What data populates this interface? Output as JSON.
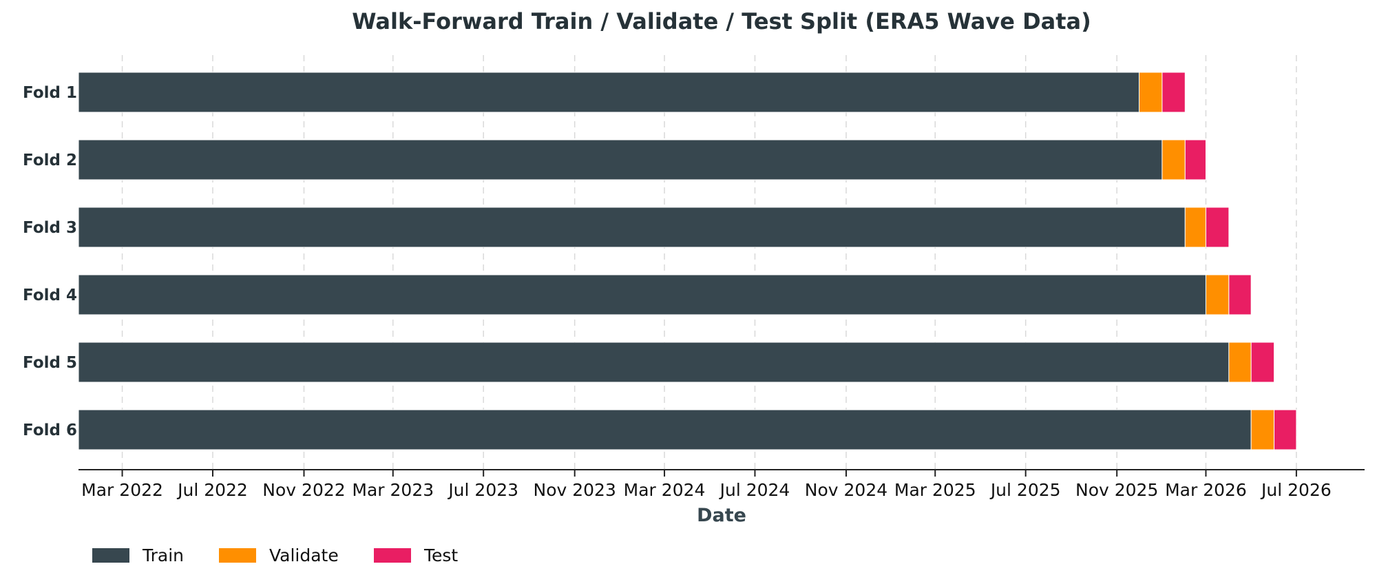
{
  "chart_data": {
    "type": "bar",
    "orientation": "horizontal",
    "stacked": true,
    "title": "Walk-Forward Train / Validate / Test Split (ERA5 Wave Data)",
    "xlabel": "Date",
    "ylabel": "",
    "xlim": [
      "2022-01-01",
      "2026-10-01"
    ],
    "xticks": [
      {
        "date": "2022-03-01",
        "label": "Mar 2022"
      },
      {
        "date": "2022-07-01",
        "label": "Jul 2022"
      },
      {
        "date": "2022-11-01",
        "label": "Nov 2022"
      },
      {
        "date": "2023-03-01",
        "label": "Mar 2023"
      },
      {
        "date": "2023-07-01",
        "label": "Jul 2023"
      },
      {
        "date": "2023-11-01",
        "label": "Nov 2023"
      },
      {
        "date": "2024-03-01",
        "label": "Mar 2024"
      },
      {
        "date": "2024-07-01",
        "label": "Jul 2024"
      },
      {
        "date": "2024-11-01",
        "label": "Nov 2024"
      },
      {
        "date": "2025-03-01",
        "label": "Mar 2025"
      },
      {
        "date": "2025-07-01",
        "label": "Jul 2025"
      },
      {
        "date": "2025-11-01",
        "label": "Nov 2025"
      },
      {
        "date": "2026-03-01",
        "label": "Mar 2026"
      },
      {
        "date": "2026-07-01",
        "label": "Jul 2026"
      }
    ],
    "grid": "x-dashed",
    "legend_position": "bottom-left",
    "series": [
      {
        "name": "Train",
        "color": "#37474f"
      },
      {
        "name": "Validate",
        "color": "#ff8f00"
      },
      {
        "name": "Test",
        "color": "#e91e63"
      }
    ],
    "folds": [
      {
        "label": "Fold 1",
        "train_start": "2022-01-01",
        "train_end": "2025-12-01",
        "val_end": "2026-01-01",
        "test_end": "2026-02-01"
      },
      {
        "label": "Fold 2",
        "train_start": "2022-01-01",
        "train_end": "2026-01-01",
        "val_end": "2026-02-01",
        "test_end": "2026-03-01"
      },
      {
        "label": "Fold 3",
        "train_start": "2022-01-01",
        "train_end": "2026-02-01",
        "val_end": "2026-03-01",
        "test_end": "2026-04-01"
      },
      {
        "label": "Fold 4",
        "train_start": "2022-01-01",
        "train_end": "2026-03-01",
        "val_end": "2026-04-01",
        "test_end": "2026-05-01"
      },
      {
        "label": "Fold 5",
        "train_start": "2022-01-01",
        "train_end": "2026-04-01",
        "val_end": "2026-05-01",
        "test_end": "2026-06-01"
      },
      {
        "label": "Fold 6",
        "train_start": "2022-01-01",
        "train_end": "2026-05-01",
        "val_end": "2026-06-01",
        "test_end": "2026-07-01"
      }
    ]
  }
}
